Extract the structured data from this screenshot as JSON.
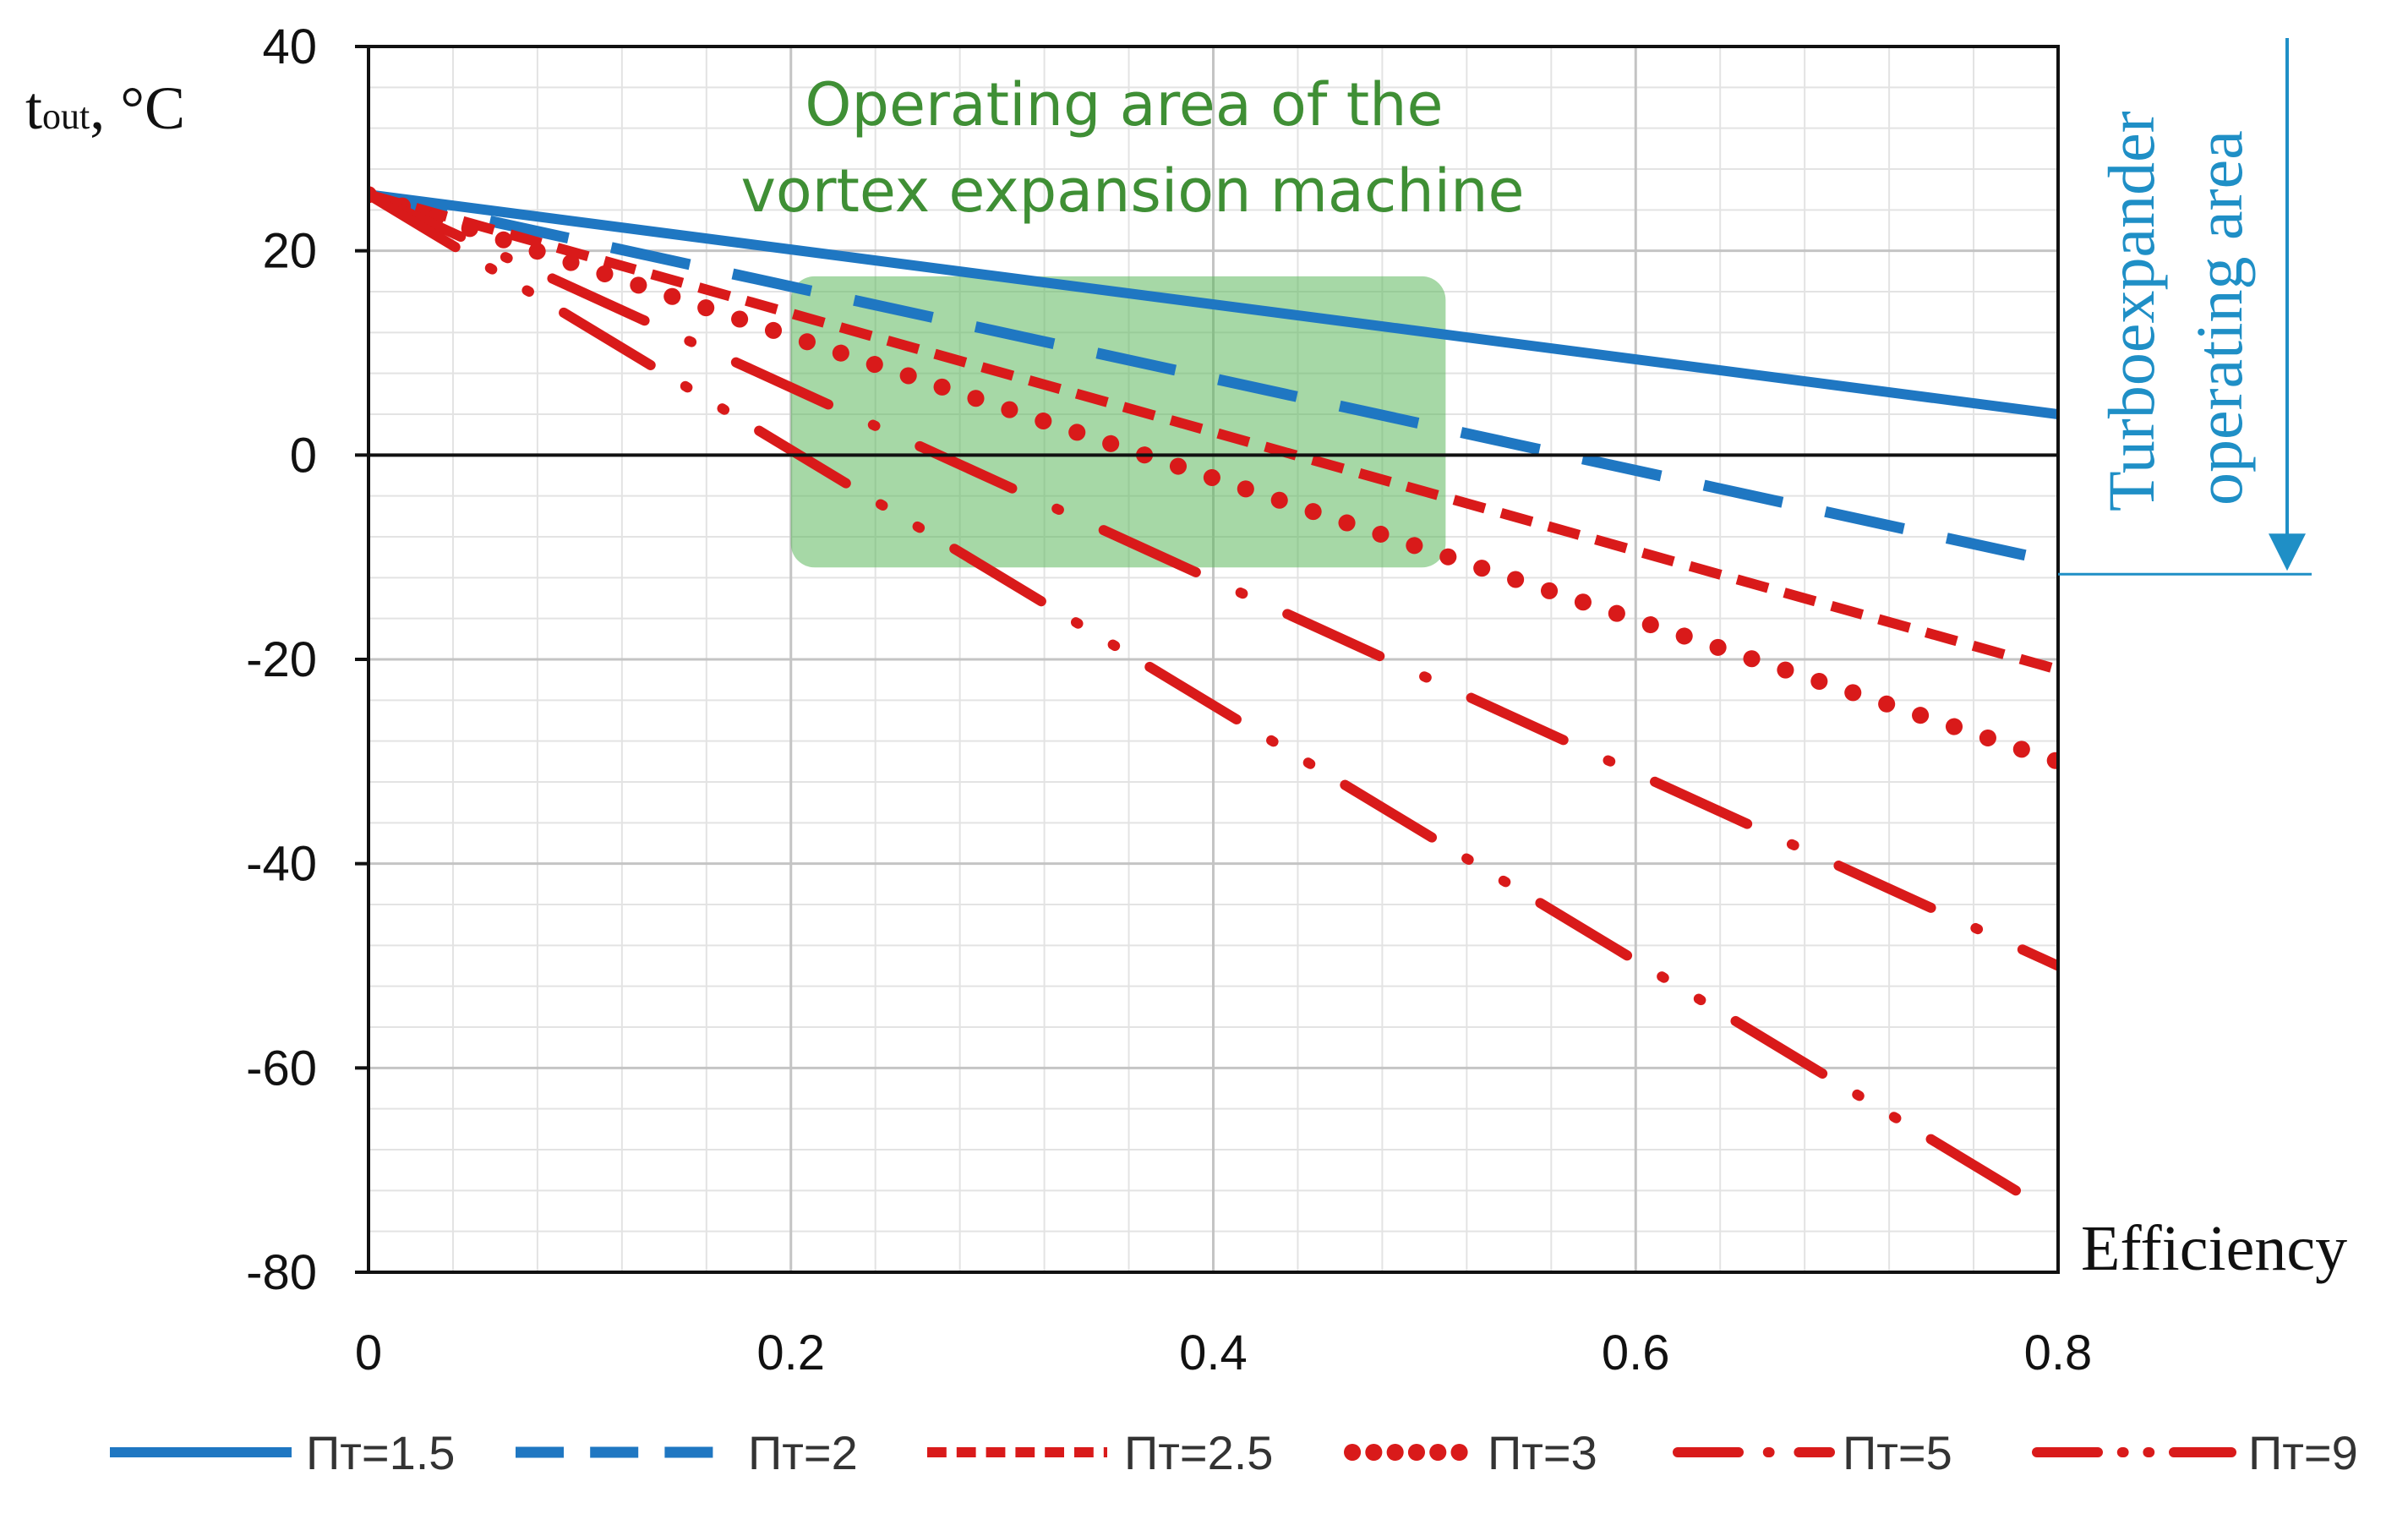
{
  "chart_data": {
    "type": "line",
    "title": "",
    "xlabel": "Efficiency",
    "ylabel": "t",
    "ylabel_sub": "out",
    "ylabel_unit": ", °C",
    "xlim": [
      0,
      0.8
    ],
    "ylim": [
      -80,
      40
    ],
    "grid": true,
    "x_major_ticks": [
      0,
      0.2,
      0.4,
      0.6,
      0.8
    ],
    "x_tick_labels": [
      "0",
      "0.2",
      "0.4",
      "0.6",
      "0.8"
    ],
    "y_major_ticks": [
      40,
      20,
      0,
      -20,
      -40,
      -60,
      -80
    ],
    "y_tick_labels": [
      "40",
      "20",
      "0",
      "-20",
      "-40",
      "-60",
      "-80"
    ],
    "x_minor_step": 0.04,
    "y_minor_step": 4,
    "series": [
      {
        "name": "Пт=1.5",
        "style": "solid",
        "color": "#1f77c2",
        "x": [
          0,
          0.8
        ],
        "y": [
          25.5,
          4
        ]
      },
      {
        "name": "Пт=2",
        "style": "long-dash",
        "color": "#1f77c2",
        "x": [
          0,
          0.8
        ],
        "y": [
          25.5,
          -10.5
        ]
      },
      {
        "name": "Пт=2.5",
        "style": "short-dash",
        "color": "#d91a1a",
        "x": [
          0,
          0.8
        ],
        "y": [
          25.5,
          -21
        ]
      },
      {
        "name": "Пт=3",
        "style": "dots",
        "color": "#d91a1a",
        "x": [
          0,
          0.8
        ],
        "y": [
          25.5,
          -30
        ]
      },
      {
        "name": "Пт=5",
        "style": "long-dash-dot",
        "color": "#d91a1a",
        "x": [
          0,
          0.8
        ],
        "y": [
          25.5,
          -50
        ]
      },
      {
        "name": "Пт=9",
        "style": "long-dash-dot-dot",
        "color": "#d91a1a",
        "x": [
          0,
          0.78
        ],
        "y": [
          25.5,
          -72
        ]
      }
    ],
    "annotations": {
      "vortex_area": {
        "label_lines": [
          "Operating area of the",
          "vortex expansion machine"
        ],
        "x_range": [
          0.2,
          0.51
        ],
        "y_range": [
          -11,
          17.5
        ],
        "color": "#5cb85c"
      },
      "turbo_area": {
        "label_lines": [
          "Turboexpander",
          "operating area"
        ],
        "y_range": [
          -11,
          40
        ],
        "color": "#1f8fc6"
      }
    }
  }
}
